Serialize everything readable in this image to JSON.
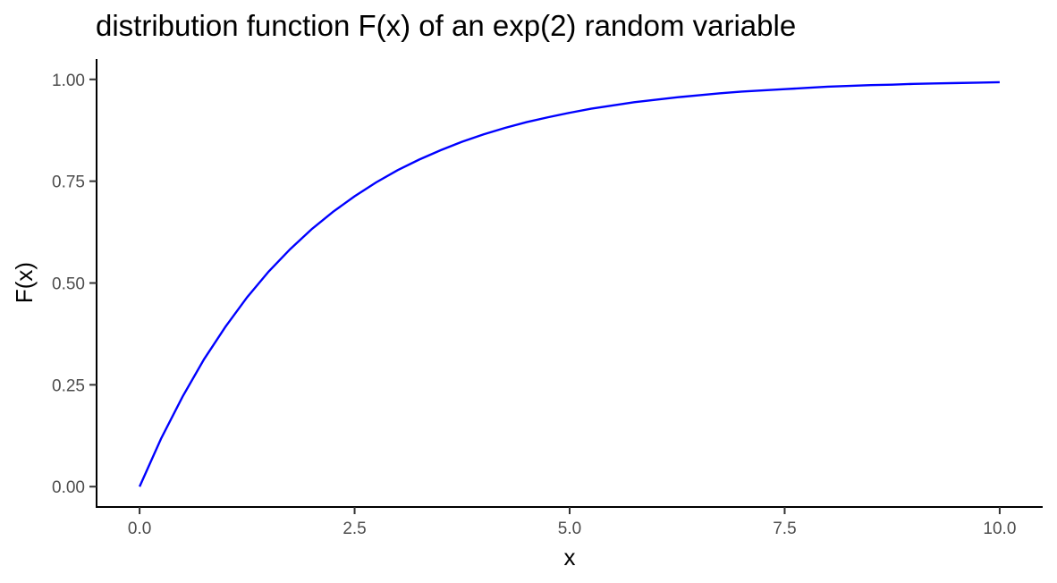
{
  "chart_data": {
    "type": "line",
    "title": "distribution function F(x) of an exp(2) random variable",
    "xlabel": "x",
    "ylabel": "F(x)",
    "xlim": [
      -0.5,
      10.5
    ],
    "ylim": [
      -0.05,
      1.05
    ],
    "x_ticks": [
      {
        "value": 0,
        "label": "0.0"
      },
      {
        "value": 2.5,
        "label": "2.5"
      },
      {
        "value": 5,
        "label": "5.0"
      },
      {
        "value": 7.5,
        "label": "7.5"
      },
      {
        "value": 10,
        "label": "10.0"
      }
    ],
    "y_ticks": [
      {
        "value": 0,
        "label": "0.00"
      },
      {
        "value": 0.25,
        "label": "0.25"
      },
      {
        "value": 0.5,
        "label": "0.50"
      },
      {
        "value": 0.75,
        "label": "0.75"
      },
      {
        "value": 1,
        "label": "1.00"
      }
    ],
    "grid": false,
    "series": [
      {
        "color": "#0000ff",
        "x": [
          0,
          0.25,
          0.5,
          0.75,
          1,
          1.25,
          1.5,
          1.75,
          2,
          2.25,
          2.5,
          2.75,
          3,
          3.25,
          3.5,
          3.75,
          4,
          4.25,
          4.5,
          4.75,
          5,
          5.25,
          5.5,
          5.75,
          6,
          6.25,
          6.5,
          6.75,
          7,
          7.25,
          7.5,
          7.75,
          8,
          8.25,
          8.5,
          8.75,
          9,
          9.25,
          9.5,
          9.75,
          10
        ],
        "y": [
          0,
          0.118,
          0.221,
          0.313,
          0.393,
          0.465,
          0.528,
          0.583,
          0.632,
          0.675,
          0.713,
          0.747,
          0.777,
          0.803,
          0.826,
          0.847,
          0.865,
          0.881,
          0.895,
          0.907,
          0.918,
          0.928,
          0.936,
          0.944,
          0.95,
          0.956,
          0.961,
          0.966,
          0.97,
          0.973,
          0.976,
          0.979,
          0.982,
          0.984,
          0.986,
          0.987,
          0.989,
          0.99,
          0.991,
          0.992,
          0.993
        ]
      }
    ]
  }
}
